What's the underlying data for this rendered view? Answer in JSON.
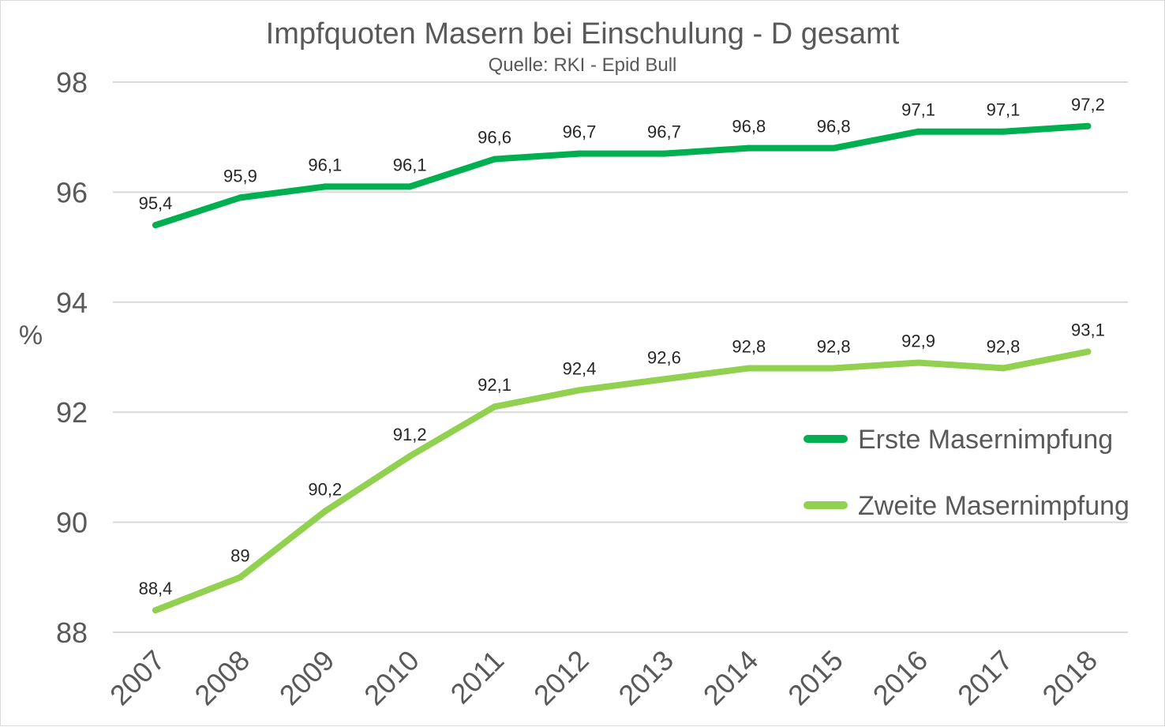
{
  "chart_data": {
    "type": "line",
    "title": "Impfquoten Masern bei Einschulung - D gesamt",
    "subtitle": "Quelle: RKI - Epid Bull",
    "xlabel": "",
    "ylabel": "%",
    "ylim": [
      88,
      98
    ],
    "yticks": [
      "88",
      "90",
      "92",
      "94",
      "96",
      "98"
    ],
    "categories": [
      "2007",
      "2008",
      "2009",
      "2010",
      "2011",
      "2012",
      "2013",
      "2014",
      "2015",
      "2016",
      "2017",
      "2018"
    ],
    "grid": true,
    "legend_position": "right",
    "series": [
      {
        "name": "Erste Masernimpfung",
        "color": "#00b050",
        "values": [
          95.4,
          95.9,
          96.1,
          96.1,
          96.6,
          96.7,
          96.7,
          96.8,
          96.8,
          97.1,
          97.1,
          97.2
        ],
        "labels": [
          "95,4",
          "95,9",
          "96,1",
          "96,1",
          "96,6",
          "96,7",
          "96,7",
          "96,8",
          "96,8",
          "97,1",
          "97,1",
          "97,2"
        ]
      },
      {
        "name": "Zweite Masernimpfung",
        "color": "#92d050",
        "values": [
          88.4,
          89,
          90.2,
          91.2,
          92.1,
          92.4,
          92.6,
          92.8,
          92.8,
          92.9,
          92.8,
          93.1
        ],
        "labels": [
          "88,4",
          "89",
          "90,2",
          "91,2",
          "92,1",
          "92,4",
          "92,6",
          "92,8",
          "92,8",
          "92,9",
          "92,8",
          "93,1"
        ]
      }
    ]
  }
}
